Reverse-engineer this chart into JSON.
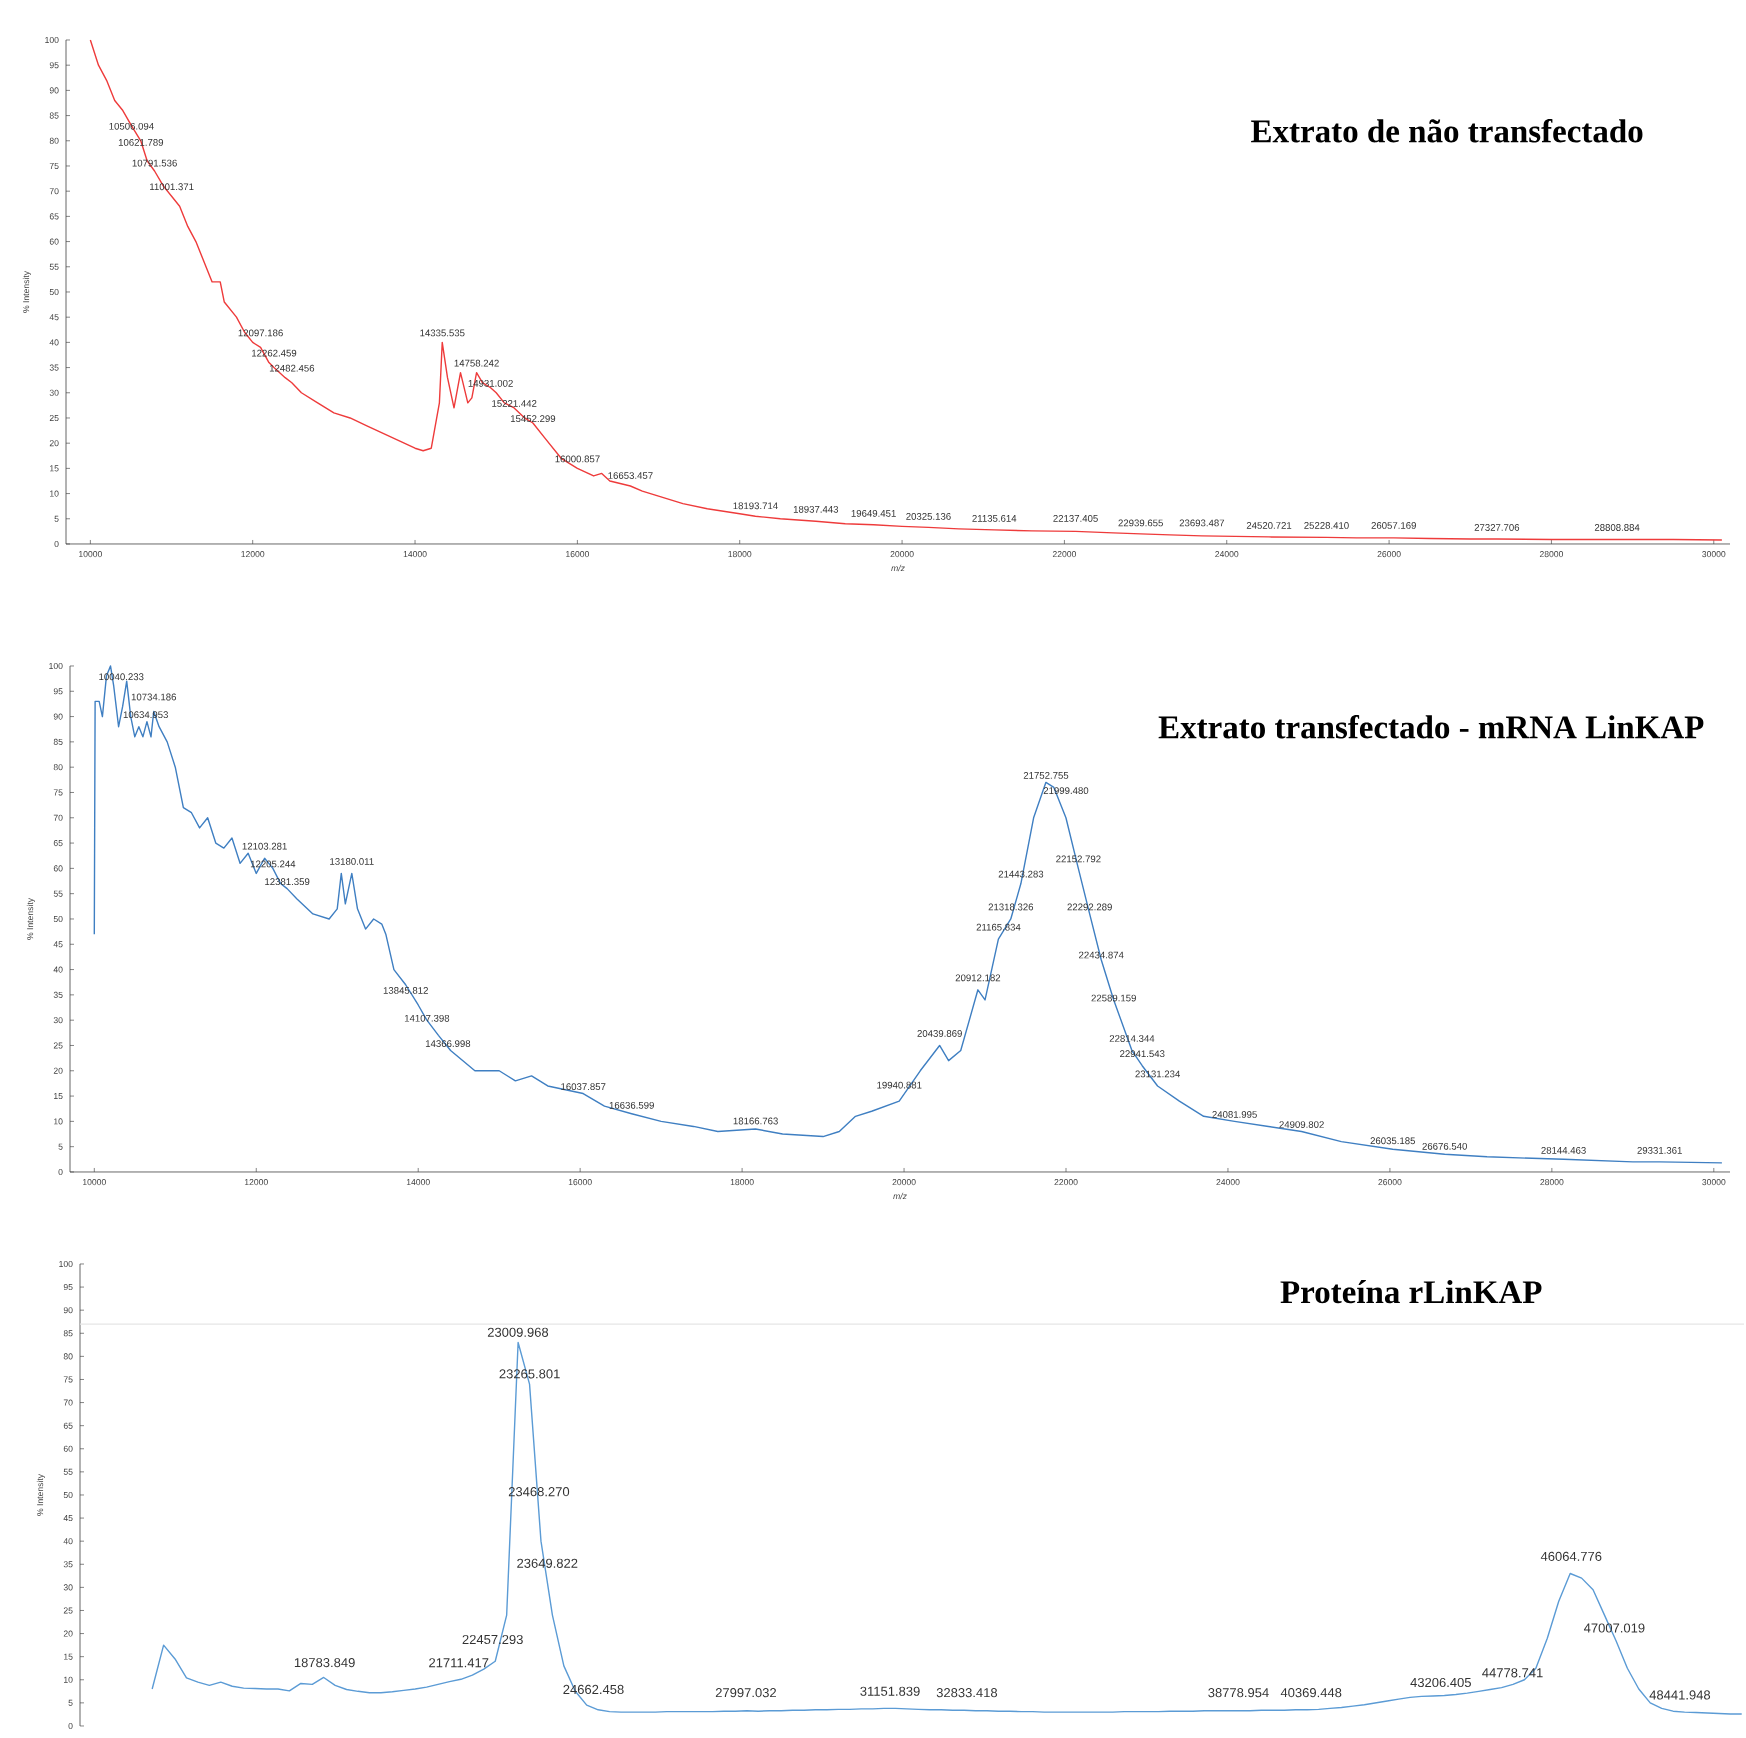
{
  "chart_data": [
    {
      "type": "line",
      "title": "Extrato de não transfectado",
      "xlabel": "m/z",
      "ylabel": "% Intensity",
      "color": "#ee3b3b",
      "x": [
        10000,
        10100,
        10200,
        10300,
        10400,
        10506,
        10621,
        10700,
        10791,
        10900,
        11001,
        11100,
        11200,
        11300,
        11400,
        11500,
        11600,
        11650,
        11800,
        11900,
        12000,
        12097,
        12200,
        12262,
        12400,
        12482,
        12600,
        12800,
        13000,
        13200,
        13400,
        13600,
        13800,
        14000,
        14100,
        14200,
        14300,
        14335,
        14400,
        14480,
        14560,
        14650,
        14700,
        14758,
        14830,
        14931,
        15000,
        15100,
        15221,
        15350,
        15452,
        15600,
        15800,
        16000,
        16200,
        16300,
        16400,
        16653,
        16800,
        17000,
        17300,
        17600,
        18000,
        18193,
        18500,
        18937,
        19300,
        19649,
        20000,
        20325,
        20700,
        21135,
        21600,
        22137,
        22600,
        22939,
        23300,
        23693,
        24100,
        24520,
        25228,
        25600,
        26057,
        26500,
        27000,
        27327,
        28000,
        28808,
        29500,
        30100
      ],
      "values": [
        100,
        95,
        92,
        88,
        86,
        83,
        80,
        76,
        74,
        71,
        69,
        67,
        63,
        60,
        56,
        52,
        52,
        48,
        45,
        42,
        40,
        39,
        36,
        35,
        33,
        32,
        30,
        28,
        26,
        25,
        23.5,
        22,
        20.5,
        19,
        18.5,
        19,
        28,
        40,
        33,
        27,
        34,
        28,
        29,
        34,
        32,
        31,
        30,
        28,
        27,
        25,
        24,
        21,
        17,
        15,
        13.5,
        14,
        12.5,
        11.5,
        10.5,
        9.5,
        8,
        7,
        6,
        5.5,
        5,
        4.5,
        4,
        3.8,
        3.5,
        3.3,
        3,
        2.8,
        2.6,
        2.5,
        2.2,
        2,
        1.8,
        1.6,
        1.5,
        1.4,
        1.3,
        1.2,
        1.2,
        1.1,
        1,
        1,
        0.9,
        0.9,
        0.9,
        0.8
      ],
      "xlim": [
        9700,
        30200
      ],
      "ylim": [
        0,
        100
      ],
      "xticks": [
        10000,
        12000,
        14000,
        16000,
        18000,
        20000,
        22000,
        24000,
        26000,
        28000,
        30000
      ],
      "yticks": [
        0,
        5,
        10,
        15,
        20,
        25,
        30,
        35,
        40,
        45,
        50,
        55,
        60,
        65,
        70,
        75,
        80,
        85,
        90,
        95,
        100
      ],
      "annotations": [
        {
          "text": "10506.094",
          "x": 10506.094,
          "y": 82
        },
        {
          "text": "10621.789",
          "x": 10621.789,
          "y": 78.8
        },
        {
          "text": "10791.536",
          "x": 10791.536,
          "y": 74.7
        },
        {
          "text": "11001.371",
          "x": 11001.371,
          "y": 70
        },
        {
          "text": "12097.186",
          "x": 12097.186,
          "y": 41
        },
        {
          "text": "12262.459",
          "x": 12262.459,
          "y": 37
        },
        {
          "text": "12482.456",
          "x": 12482.456,
          "y": 34
        },
        {
          "text": "14335.535",
          "x": 14335.535,
          "y": 41
        },
        {
          "text": "14758.242",
          "x": 14758.242,
          "y": 35
        },
        {
          "text": "14931.002",
          "x": 14931.002,
          "y": 31
        },
        {
          "text": "15221.442",
          "x": 15221.442,
          "y": 27
        },
        {
          "text": "15452.299",
          "x": 15452.299,
          "y": 24
        },
        {
          "text": "16000.857",
          "x": 16000.857,
          "y": 16
        },
        {
          "text": "16653.457",
          "x": 16653.457,
          "y": 12.7
        },
        {
          "text": "18193.714",
          "x": 18193.714,
          "y": 6.7
        },
        {
          "text": "18937.443",
          "x": 18937.443,
          "y": 6
        },
        {
          "text": "19649.451",
          "x": 19649.451,
          "y": 5.2
        },
        {
          "text": "20325.136",
          "x": 20325.136,
          "y": 4.6
        },
        {
          "text": "21135.614",
          "x": 21135.614,
          "y": 4.2
        },
        {
          "text": "22137.405",
          "x": 22137.405,
          "y": 4.2
        },
        {
          "text": "22939.655",
          "x": 22939.655,
          "y": 3.3
        },
        {
          "text": "23693.487",
          "x": 23693.487,
          "y": 3.3
        },
        {
          "text": "24520.721",
          "x": 24520.721,
          "y": 2.8
        },
        {
          "text": "25228.410",
          "x": 25228.41,
          "y": 2.8
        },
        {
          "text": "26057.169",
          "x": 26057.169,
          "y": 2.8
        },
        {
          "text": "27327.706",
          "x": 27327.706,
          "y": 2.4
        },
        {
          "text": "28808.884",
          "x": 28808.884,
          "y": 2.4
        }
      ]
    },
    {
      "type": "line",
      "title": "Extrato transfectado - mRNA LinKAP",
      "xlabel": "m/z",
      "ylabel": "% Intensity",
      "color": "#3f7fc2",
      "x": [
        10000,
        10010,
        10060,
        10100,
        10150,
        10200,
        10240,
        10300,
        10350,
        10400,
        10450,
        10500,
        10550,
        10600,
        10650,
        10700,
        10734,
        10800,
        10900,
        11000,
        11050,
        11100,
        11200,
        11300,
        11400,
        11500,
        11600,
        11700,
        11800,
        11900,
        12000,
        12103,
        12205,
        12300,
        12381,
        12500,
        12700,
        12900,
        13000,
        13050,
        13100,
        13180,
        13250,
        13350,
        13450,
        13550,
        13600,
        13700,
        13845,
        14000,
        14107,
        14250,
        14400,
        14700,
        15000,
        15200,
        15400,
        15600,
        16037,
        16300,
        16636,
        17000,
        17400,
        17700,
        18166,
        18500,
        19000,
        19200,
        19400,
        19600,
        19940,
        20200,
        20439,
        20550,
        20700,
        20912,
        21000,
        21165,
        21318,
        21443,
        21600,
        21752,
        21850,
        21999,
        22152,
        22292,
        22434,
        22589,
        22814,
        22941,
        23131,
        23400,
        23700,
        24081,
        24500,
        24909,
        25400,
        26035,
        26676,
        27200,
        28144,
        29000,
        29331,
        30100
      ],
      "values": [
        47,
        93,
        93,
        90,
        98,
        100,
        96,
        88,
        92,
        97,
        90,
        86,
        88,
        86,
        89,
        86,
        91,
        88,
        85,
        80,
        76,
        72,
        71,
        68,
        70,
        65,
        64,
        66,
        61,
        63,
        59,
        62,
        60,
        57,
        56,
        54,
        51,
        50,
        52,
        59,
        53,
        59,
        52,
        48,
        50,
        49,
        47,
        40,
        37,
        33,
        30,
        27,
        24,
        20,
        20,
        18,
        19,
        17,
        15.5,
        13,
        11.5,
        10,
        9,
        8,
        8.5,
        7.5,
        7,
        8,
        11,
        12,
        14,
        20,
        25,
        22,
        24,
        36,
        34,
        46,
        50,
        57,
        70,
        77,
        76,
        70,
        60,
        51,
        42,
        34,
        24,
        21,
        17,
        14,
        11,
        10,
        9,
        8,
        6,
        4.5,
        3.5,
        3,
        2.5,
        2,
        2,
        1.8
      ],
      "xlim": [
        9700,
        30200
      ],
      "ylim": [
        0,
        100
      ],
      "xticks": [
        10000,
        12000,
        14000,
        16000,
        18000,
        20000,
        22000,
        24000,
        26000,
        28000,
        30000
      ],
      "yticks": [
        0,
        5,
        10,
        15,
        20,
        25,
        30,
        35,
        40,
        45,
        50,
        55,
        60,
        65,
        70,
        75,
        80,
        85,
        90,
        95,
        100
      ],
      "annotations": [
        {
          "text": "10040.233",
          "x": 10040.233,
          "y": 97
        },
        {
          "text": "10734.186",
          "x": 10734.186,
          "y": 93
        },
        {
          "text": "10634.953",
          "x": 10634.953,
          "y": 89.5
        },
        {
          "text": "12103.281",
          "x": 12103.281,
          "y": 63.5
        },
        {
          "text": "12205.244",
          "x": 12205.244,
          "y": 60
        },
        {
          "text": "12381.359",
          "x": 12381.359,
          "y": 56.5
        },
        {
          "text": "13180.011",
          "x": 13180.011,
          "y": 60.5
        },
        {
          "text": "13845.812",
          "x": 13845.812,
          "y": 35
        },
        {
          "text": "14107.398",
          "x": 14107.398,
          "y": 29.5
        },
        {
          "text": "14366.998",
          "x": 14366.998,
          "y": 24.5
        },
        {
          "text": "16037.857",
          "x": 16037.857,
          "y": 16
        },
        {
          "text": "16636.599",
          "x": 16636.599,
          "y": 12.3
        },
        {
          "text": "18166.763",
          "x": 18166.763,
          "y": 9.2
        },
        {
          "text": "19940.881",
          "x": 19940.881,
          "y": 16.3
        },
        {
          "text": "20439.869",
          "x": 20439.869,
          "y": 26.5
        },
        {
          "text": "20912.182",
          "x": 20912.182,
          "y": 37.5
        },
        {
          "text": "21165.834",
          "x": 21165.834,
          "y": 47.5
        },
        {
          "text": "21318.326",
          "x": 21318.326,
          "y": 51.5
        },
        {
          "text": "21443.283",
          "x": 21443.283,
          "y": 58
        },
        {
          "text": "21752.755",
          "x": 21752.755,
          "y": 77.5
        },
        {
          "text": "21999.480",
          "x": 21999.48,
          "y": 74.5
        },
        {
          "text": "22152.792",
          "x": 22152.792,
          "y": 61
        },
        {
          "text": "22292.289",
          "x": 22292.289,
          "y": 51.5
        },
        {
          "text": "22434.874",
          "x": 22434.874,
          "y": 42
        },
        {
          "text": "22589.159",
          "x": 22589.159,
          "y": 33.5
        },
        {
          "text": "22814.344",
          "x": 22814.344,
          "y": 25.5
        },
        {
          "text": "22941.543",
          "x": 22941.543,
          "y": 22.5
        },
        {
          "text": "23131.234",
          "x": 23131.234,
          "y": 18.5
        },
        {
          "text": "24081.995",
          "x": 24081.995,
          "y": 10.5
        },
        {
          "text": "24909.802",
          "x": 24909.802,
          "y": 8.5
        },
        {
          "text": "26035.185",
          "x": 26035.185,
          "y": 5.3
        },
        {
          "text": "26676.540",
          "x": 26676.54,
          "y": 4.2
        },
        {
          "text": "28144.463",
          "x": 28144.463,
          "y": 3.4
        },
        {
          "text": "29331.361",
          "x": 29331.361,
          "y": 3.4
        }
      ]
    },
    {
      "type": "line",
      "title": "Proteína rLinKAP",
      "ylabel": "% Intensity",
      "color": "#5b9bd5",
      "tick_labels": "y",
      "categories": [
        null,
        null,
        null,
        null,
        null,
        null,
        null,
        null,
        null,
        null,
        null,
        null,
        null,
        null,
        null,
        null,
        null,
        null,
        null,
        null,
        null,
        null,
        null,
        null,
        null,
        null,
        null,
        null,
        null,
        null,
        null,
        null,
        null,
        null,
        null,
        null,
        null,
        null,
        null,
        null,
        null,
        null,
        null,
        null,
        null,
        null,
        null,
        null,
        null,
        null,
        null,
        null,
        null,
        null,
        null,
        null,
        null,
        null,
        null,
        null,
        null,
        null,
        null,
        null,
        null,
        null,
        null,
        null,
        null,
        null,
        null,
        null,
        null,
        null,
        null,
        null,
        null,
        null,
        null,
        null,
        null,
        null,
        null,
        null,
        null,
        null,
        null,
        null,
        null,
        null,
        null,
        null,
        null,
        null,
        null,
        null,
        null,
        null,
        null,
        null,
        null,
        null,
        null,
        null,
        null,
        null,
        null,
        null,
        null,
        null,
        null,
        null,
        null,
        null,
        null,
        null,
        null,
        null,
        null,
        null,
        null,
        null,
        null,
        null,
        null,
        null,
        null,
        null,
        null,
        null,
        null,
        null,
        null,
        null,
        null,
        null,
        null,
        null,
        null,
        null
      ],
      "values": [
        8,
        17.5,
        14.5,
        10.4,
        9.5,
        8.8,
        9.5,
        8.6,
        8.2,
        8.1,
        8,
        8,
        7.6,
        9.2,
        9,
        10.5,
        8.8,
        7.9,
        7.5,
        7.2,
        7.2,
        7.4,
        7.7,
        8,
        8.4,
        9,
        9.6,
        10.1,
        11,
        12.3,
        14,
        24,
        83,
        74,
        40,
        24,
        13,
        7.5,
        4.5,
        3.5,
        3.1,
        3.0,
        3.0,
        3.0,
        3.0,
        3.1,
        3.1,
        3.1,
        3.1,
        3.1,
        3.2,
        3.2,
        3.3,
        3.2,
        3.3,
        3.3,
        3.4,
        3.4,
        3.5,
        3.5,
        3.6,
        3.6,
        3.7,
        3.7,
        3.8,
        3.8,
        3.7,
        3.6,
        3.5,
        3.5,
        3.4,
        3.4,
        3.3,
        3.3,
        3.2,
        3.2,
        3.1,
        3.1,
        3.0,
        3.0,
        3.0,
        3.0,
        3.0,
        3.0,
        3.0,
        3.1,
        3.1,
        3.1,
        3.1,
        3.2,
        3.2,
        3.2,
        3.3,
        3.3,
        3.3,
        3.3,
        3.3,
        3.4,
        3.4,
        3.4,
        3.5,
        3.5,
        3.6,
        3.8,
        4.0,
        4.3,
        4.6,
        5.0,
        5.4,
        5.8,
        6.2,
        6.4,
        6.5,
        6.6,
        6.8,
        7.1,
        7.5,
        7.9,
        8.3,
        9.0,
        10,
        12.5,
        19,
        27,
        33,
        32,
        29.5,
        24,
        18.5,
        12.5,
        8,
        5,
        3.8,
        3.2,
        3.0,
        2.9,
        2.8,
        2.7,
        2.6,
        2.6
      ],
      "ylim": [
        0,
        100
      ],
      "ref_lines": [
        {
          "axis": "y",
          "value": 87,
          "color": "#e6e6e6"
        }
      ],
      "yticks": [
        0,
        5,
        10,
        15,
        20,
        25,
        30,
        35,
        40,
        45,
        50,
        55,
        60,
        65,
        70,
        75,
        80,
        85,
        90,
        95,
        100
      ],
      "annotations": [
        "18783.849",
        "21711.417",
        "22457.293",
        "23009.968",
        "23265.801",
        "23468.270",
        "23649.822",
        "24662.458",
        "27997.032",
        "31151.839",
        "32833.418",
        "38778.954",
        "40369.448",
        "43206.405",
        "44778.741",
        "46064.776",
        "47007.019",
        "48441.948"
      ]
    }
  ]
}
